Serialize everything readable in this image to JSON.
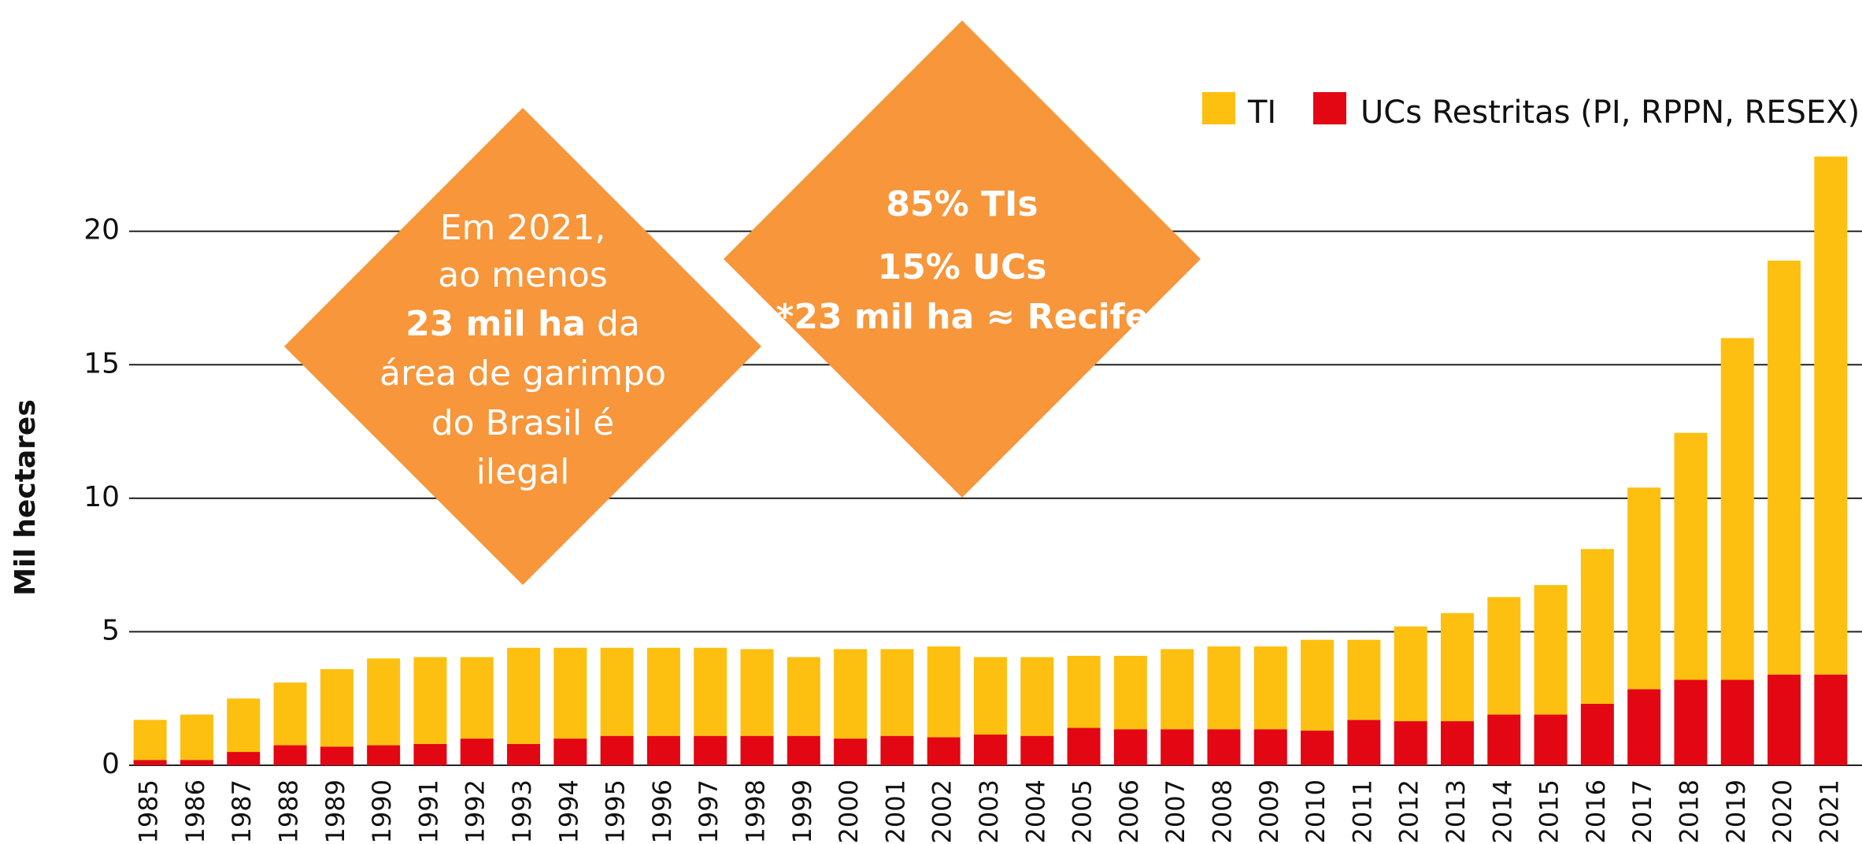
{
  "chart_data": {
    "type": "stacked_bar",
    "y_label": "Mil hectares",
    "categories": [
      "1985",
      "1986",
      "1987",
      "1988",
      "1989",
      "1990",
      "1991",
      "1992",
      "1993",
      "1994",
      "1995",
      "1996",
      "1997",
      "1998",
      "1999",
      "2000",
      "2001",
      "2002",
      "2003",
      "2004",
      "2005",
      "2006",
      "2007",
      "2008",
      "2009",
      "2010",
      "2011",
      "2012",
      "2013",
      "2014",
      "2015",
      "2016",
      "2017",
      "2018",
      "2019",
      "2020",
      "2021"
    ],
    "series": [
      {
        "name": "TI",
        "color": "#fdc010",
        "values": [
          1.5,
          1.7,
          2.0,
          2.35,
          2.9,
          3.25,
          3.25,
          3.05,
          3.6,
          3.4,
          3.3,
          3.3,
          3.3,
          3.25,
          2.95,
          3.35,
          3.25,
          3.4,
          2.9,
          2.95,
          2.7,
          2.75,
          3.0,
          3.1,
          3.1,
          3.4,
          3.0,
          3.55,
          4.05,
          4.4,
          4.85,
          5.8,
          7.55,
          9.25,
          12.8,
          15.5,
          19.4
        ]
      },
      {
        "name": "UCs Restritas (PI, RPPN, RESEX)",
        "color": "#e30613",
        "values": [
          0.2,
          0.2,
          0.5,
          0.75,
          0.7,
          0.75,
          0.8,
          1.0,
          0.8,
          1.0,
          1.1,
          1.1,
          1.1,
          1.1,
          1.1,
          1.0,
          1.1,
          1.05,
          1.15,
          1.1,
          1.4,
          1.35,
          1.35,
          1.35,
          1.35,
          1.3,
          1.7,
          1.65,
          1.65,
          1.9,
          1.9,
          2.3,
          2.85,
          3.2,
          3.2,
          3.4,
          3.4
        ]
      }
    ],
    "ylim": [
      0,
      23
    ],
    "yticks": [
      0,
      5,
      10,
      15,
      20
    ],
    "grid": true,
    "legend": "upper right",
    "annotations": [
      {
        "color": "#f7963b",
        "lines": [
          "Em 2021,",
          "ao menos",
          "23 mil ha",
          "da",
          "área de garimpo",
          "do Brasil é",
          "ilegal"
        ]
      },
      {
        "color": "#f7963b",
        "lines": [
          "85% TIs",
          "15% UCs",
          "*23 mil ha ≈ Recife"
        ]
      }
    ]
  }
}
